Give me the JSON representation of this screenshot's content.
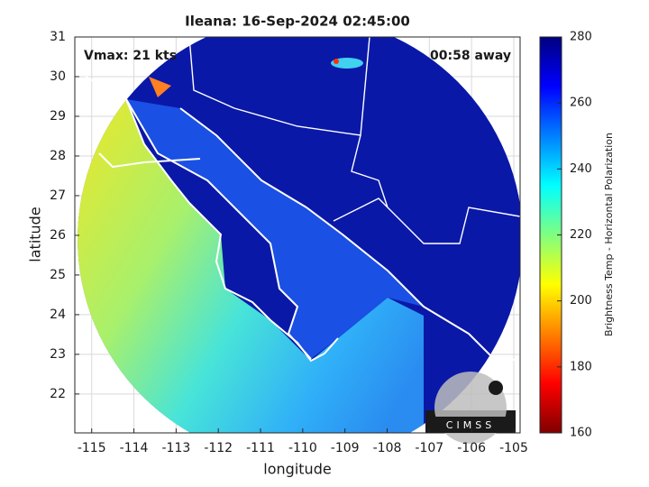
{
  "chart_data": {
    "type": "map",
    "title": "Ileana: 16-Sep-2024 02:45:00",
    "xlabel": "longitude",
    "ylabel": "latitude",
    "annotations": [
      "Vmax: 21 kts",
      "00:58 away"
    ],
    "xlim": [
      -115.4,
      -104.85
    ],
    "ylim": [
      21.02,
      31
    ],
    "xticks": [
      -115,
      -114,
      -113,
      -112,
      -111,
      -110,
      -109,
      -108,
      -107,
      -106,
      -105
    ],
    "yticks": [
      22,
      23,
      24,
      25,
      26,
      27,
      28,
      29,
      30,
      31
    ],
    "grid": true,
    "colorbar": {
      "label": "Brightness Temp - Horizontal Polarization",
      "lim": [
        160,
        280
      ],
      "ticks": [
        160,
        180,
        200,
        220,
        240,
        260,
        280
      ],
      "colormap": [
        "#800000",
        "#ff0000",
        "#ff8000",
        "#ffff00",
        "#80ff80",
        "#00ffff",
        "#0080ff",
        "#0000ff",
        "#000080"
      ]
    }
  },
  "logo": "CIMSS"
}
